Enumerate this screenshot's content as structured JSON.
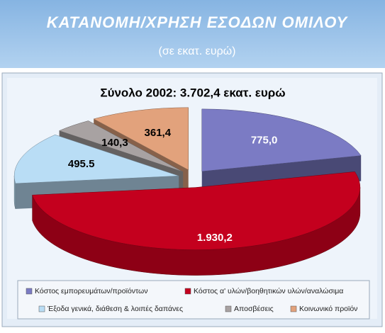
{
  "header": {
    "title": "ΚΑΤΑΝΟΜΗ/ΧΡΗΣΗ ΕΣΟΔΩΝ ΟΜΙΛΟΥ",
    "subtitle": "(σε εκατ. ευρώ)"
  },
  "chart_data": {
    "type": "pie",
    "title": "Σύνολο 2002: 3.702,4 εκατ. ευρώ",
    "categories": [
      "Κόστος εμπορευμάτων/προϊόντων",
      "Κόστος α' υλών/βοηθητικών υλών/αναλώσιμα",
      "Έξοδα γενικά, διάθεση & λοιπές δαπάνες",
      "Αποσβέσεις",
      "Κοινωνικό προϊόν"
    ],
    "values": [
      775.0,
      1930.2,
      495.5,
      140.3,
      361.4
    ],
    "value_labels": [
      "775,0",
      "1.930,2",
      "495.5",
      "140,3",
      "361,4"
    ],
    "colors": [
      "#7b7bc4",
      "#c4001e",
      "#b9ddf5",
      "#a8a2a2",
      "#e2a27c"
    ],
    "legend": "bottom"
  }
}
